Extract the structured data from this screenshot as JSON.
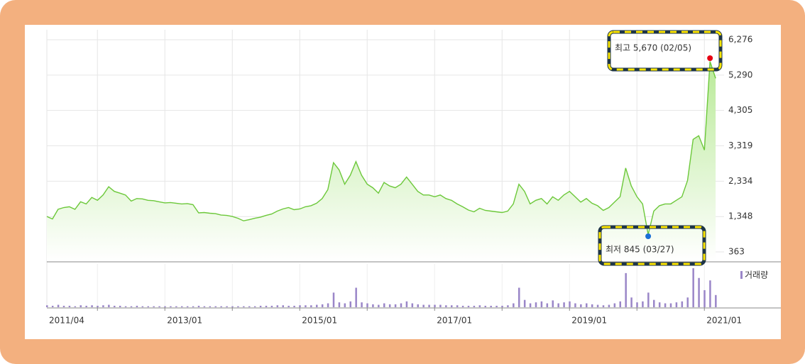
{
  "chart_data": {
    "type": "line",
    "x": [
      "2011/04",
      "2011/05",
      "2011/06",
      "2011/07",
      "2011/08",
      "2011/09",
      "2011/10",
      "2011/11",
      "2011/12",
      "2012/01",
      "2012/02",
      "2012/03",
      "2012/04",
      "2012/05",
      "2012/06",
      "2012/07",
      "2012/08",
      "2012/09",
      "2012/10",
      "2012/11",
      "2012/12",
      "2013/01",
      "2013/02",
      "2013/03",
      "2013/04",
      "2013/05",
      "2013/06",
      "2013/07",
      "2013/08",
      "2013/09",
      "2013/10",
      "2013/11",
      "2013/12",
      "2014/01",
      "2014/02",
      "2014/03",
      "2014/04",
      "2014/05",
      "2014/06",
      "2014/07",
      "2014/08",
      "2014/09",
      "2014/10",
      "2014/11",
      "2014/12",
      "2015/01",
      "2015/02",
      "2015/03",
      "2015/04",
      "2015/05",
      "2015/06",
      "2015/07",
      "2015/08",
      "2015/09",
      "2015/10",
      "2015/11",
      "2015/12",
      "2016/01",
      "2016/02",
      "2016/03",
      "2016/04",
      "2016/05",
      "2016/06",
      "2016/07",
      "2016/08",
      "2016/09",
      "2016/10",
      "2016/11",
      "2016/12",
      "2017/01",
      "2017/02",
      "2017/03",
      "2017/04",
      "2017/05",
      "2017/06",
      "2017/07",
      "2017/08",
      "2017/09",
      "2017/10",
      "2017/11",
      "2017/12",
      "2018/01",
      "2018/02",
      "2018/03",
      "2018/04",
      "2018/05",
      "2018/06",
      "2018/07",
      "2018/08",
      "2018/09",
      "2018/10",
      "2018/11",
      "2018/12",
      "2019/01",
      "2019/02",
      "2019/03",
      "2019/04",
      "2019/05",
      "2019/06",
      "2019/07",
      "2019/08",
      "2019/09",
      "2019/10",
      "2019/11",
      "2019/12",
      "2020/01",
      "2020/02",
      "2020/03",
      "2020/04",
      "2020/05",
      "2020/06",
      "2020/07",
      "2020/08",
      "2020/09",
      "2020/10",
      "2020/11",
      "2020/12",
      "2021/01",
      "2021/02",
      "2021/03"
    ],
    "series": [
      {
        "color": "#6cc83a",
        "values": [
          1350,
          1280,
          1550,
          1600,
          1620,
          1550,
          1760,
          1700,
          1880,
          1800,
          1950,
          2180,
          2050,
          2000,
          1950,
          1780,
          1850,
          1840,
          1800,
          1790,
          1760,
          1730,
          1740,
          1720,
          1700,
          1710,
          1680,
          1450,
          1460,
          1440,
          1430,
          1390,
          1380,
          1350,
          1300,
          1230,
          1260,
          1300,
          1330,
          1380,
          1420,
          1500,
          1560,
          1600,
          1540,
          1560,
          1620,
          1650,
          1720,
          1850,
          2100,
          2850,
          2650,
          2250,
          2500,
          2880,
          2500,
          2250,
          2150,
          2000,
          2300,
          2200,
          2150,
          2250,
          2450,
          2250,
          2050,
          1950,
          1950,
          1900,
          1950,
          1850,
          1800,
          1700,
          1620,
          1530,
          1480,
          1580,
          1520,
          1500,
          1480,
          1460,
          1500,
          1700,
          2250,
          2050,
          1700,
          1800,
          1850,
          1700,
          1900,
          1800,
          1950,
          2050,
          1900,
          1750,
          1850,
          1720,
          1650,
          1520,
          1600,
          1750,
          1900,
          2700,
          2200,
          1900,
          1700,
          845,
          1500,
          1650,
          1700,
          1700,
          1800,
          1900,
          2350,
          3500,
          3600,
          3200,
          5670,
          5200
        ]
      }
    ],
    "volume": {
      "name": "거래량",
      "color": "#9a86c8",
      "values": [
        4,
        3,
        5,
        3,
        3,
        2,
        4,
        3,
        4,
        3,
        4,
        5,
        3,
        3,
        2,
        2,
        3,
        2,
        2,
        2,
        2,
        2,
        2,
        2,
        2,
        2,
        2,
        3,
        2,
        2,
        2,
        2,
        2,
        2,
        2,
        2,
        2,
        2,
        3,
        3,
        3,
        4,
        4,
        3,
        3,
        4,
        4,
        4,
        5,
        6,
        8,
        30,
        10,
        8,
        12,
        40,
        10,
        8,
        6,
        5,
        8,
        6,
        6,
        8,
        12,
        8,
        6,
        5,
        5,
        5,
        5,
        4,
        4,
        4,
        3,
        3,
        3,
        4,
        3,
        3,
        3,
        3,
        4,
        8,
        40,
        15,
        8,
        10,
        12,
        8,
        14,
        8,
        10,
        12,
        8,
        6,
        8,
        6,
        5,
        4,
        5,
        8,
        12,
        70,
        20,
        10,
        12,
        30,
        15,
        10,
        8,
        8,
        10,
        12,
        20,
        80,
        60,
        35,
        55,
        25
      ]
    },
    "ylim": [
      106,
      6553
    ],
    "yticks": [
      {
        "value": 363,
        "label": "363"
      },
      {
        "value": 1348,
        "label": "1,348"
      },
      {
        "value": 2334,
        "label": "2,334"
      },
      {
        "value": 3319,
        "label": "3,319"
      },
      {
        "value": 4305,
        "label": "4,305"
      },
      {
        "value": 5290,
        "label": "5,290"
      },
      {
        "value": 6276,
        "label": "6,276"
      }
    ],
    "xticks": [
      "2011/04",
      "2013/01",
      "2015/01",
      "2017/01",
      "2019/01",
      "2021/01"
    ],
    "grid": true,
    "annotations": [
      {
        "text": "최고 5,670 (02/05)",
        "color": "#e60012",
        "point": 118
      },
      {
        "text": "최저 845 (03/27)",
        "color": "#1a6fd6",
        "point": 107
      }
    ]
  }
}
